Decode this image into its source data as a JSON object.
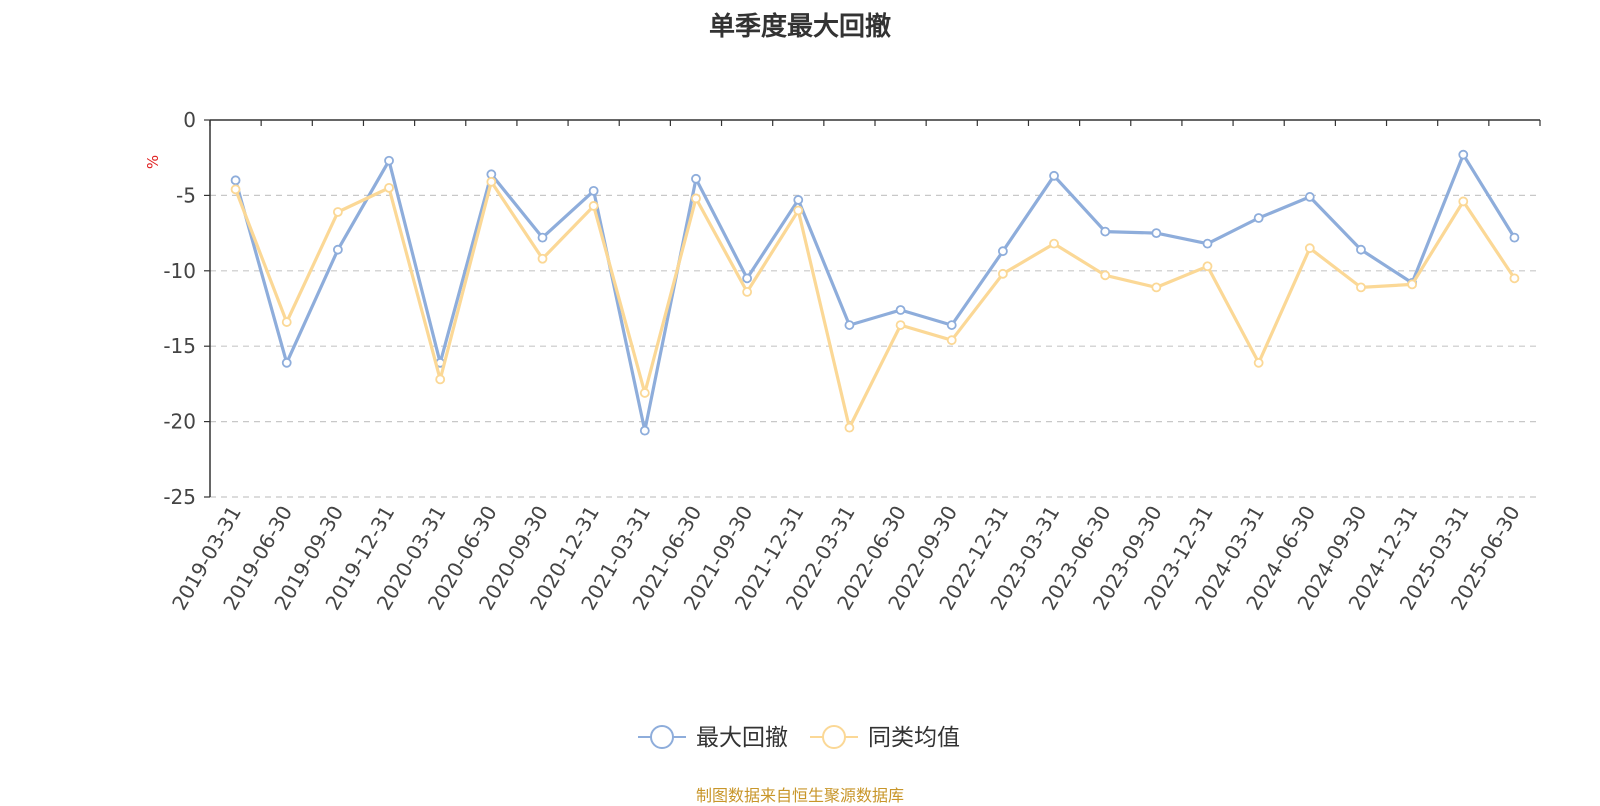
{
  "chart_data": {
    "type": "line",
    "title": "单季度最大回撤",
    "ylabel": "%",
    "ylim": [
      -25,
      0
    ],
    "yticks": [
      0,
      -5,
      -10,
      -15,
      -20,
      -25
    ],
    "grid": "horizontal dashed",
    "legend_position": "bottom-center",
    "categories": [
      "2019-03-31",
      "2019-06-30",
      "2019-09-30",
      "2019-12-31",
      "2020-03-31",
      "2020-06-30",
      "2020-09-30",
      "2020-12-31",
      "2021-03-31",
      "2021-06-30",
      "2021-09-30",
      "2021-12-31",
      "2022-03-31",
      "2022-06-30",
      "2022-09-30",
      "2022-12-31",
      "2023-03-31",
      "2023-06-30",
      "2023-09-30",
      "2023-12-31",
      "2024-03-31",
      "2024-06-30",
      "2024-09-30",
      "2024-12-31",
      "2025-03-31",
      "2025-06-30"
    ],
    "series": [
      {
        "name": "最大回撤",
        "color": "#8eaddb",
        "values": [
          -4.0,
          -16.1,
          -8.6,
          -2.7,
          -16.1,
          -3.6,
          -7.8,
          -4.7,
          -20.6,
          -3.9,
          -10.5,
          -5.3,
          -13.6,
          -12.6,
          -13.6,
          -8.7,
          -3.7,
          -7.4,
          -7.5,
          -8.2,
          -6.5,
          -5.1,
          -8.6,
          -10.8,
          -2.3,
          -7.8
        ]
      },
      {
        "name": "同类均值",
        "color": "#fbd896",
        "values": [
          -4.6,
          -13.4,
          -6.1,
          -4.5,
          -17.2,
          -4.1,
          -9.2,
          -5.7,
          -18.1,
          -5.2,
          -11.4,
          -6.0,
          -20.4,
          -13.6,
          -14.6,
          -10.2,
          -8.2,
          -10.3,
          -11.1,
          -9.7,
          -16.1,
          -8.5,
          -11.1,
          -10.9,
          -5.4,
          -10.5
        ]
      }
    ]
  },
  "source_note": "制图数据来自恒生聚源数据库"
}
